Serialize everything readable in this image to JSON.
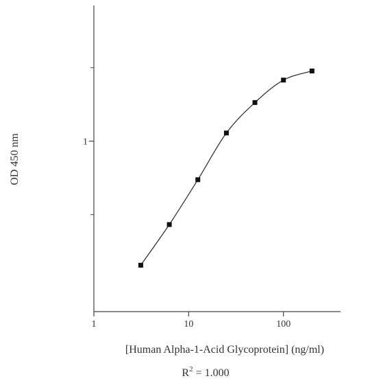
{
  "chart_data": {
    "type": "scatter",
    "x_scale": "log",
    "y_scale": "log",
    "xlabel": "[Human Alpha-1-Acid Glycoprotein] (ng/ml)",
    "ylabel": "OD 450 nm",
    "annotation": {
      "base": "R",
      "exponent": "2",
      "rest": " = 1.000"
    },
    "x_ticks": [
      {
        "value": 1,
        "label": "1"
      },
      {
        "value": 10,
        "label": "10"
      },
      {
        "value": 100,
        "label": "100"
      }
    ],
    "y_ticks": [
      {
        "value": 1,
        "label": "1"
      }
    ],
    "y_minor_ticks": [
      0.5,
      2
    ],
    "xlim": [
      1,
      400
    ],
    "ylim": [
      0.2,
      3.6
    ],
    "grid": false,
    "series": [
      {
        "marker": "square",
        "color": "#111111",
        "x": [
          3.125,
          6.25,
          12.5,
          25,
          50,
          100,
          200
        ],
        "y": [
          0.31,
          0.455,
          0.695,
          1.08,
          1.44,
          1.78,
          1.94
        ]
      }
    ]
  }
}
